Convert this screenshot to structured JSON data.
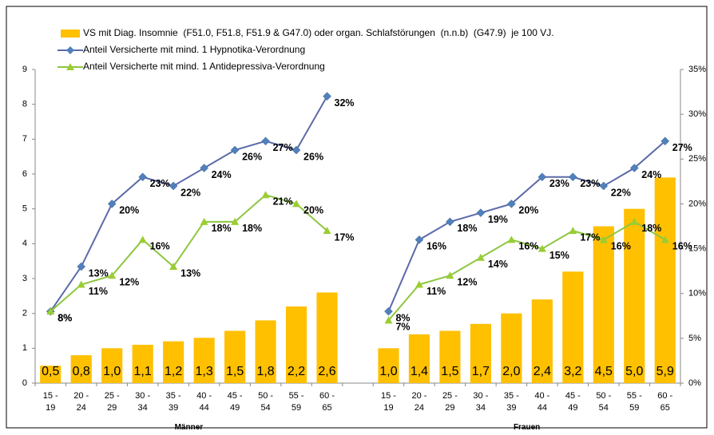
{
  "chart_data": {
    "type": "bar_line",
    "categories": [
      "15 - 19",
      "20 - 24",
      "25 - 29",
      "30 - 34",
      "35 - 39",
      "40 - 44",
      "45 - 49",
      "50 - 54",
      "55 - 59",
      "60 - 65",
      null,
      "15 - 19",
      "20 - 24",
      "25 - 29",
      "30 - 34",
      "35 - 39",
      "40 - 44",
      "45 - 49",
      "50 - 54",
      "55 - 59",
      "60 - 65"
    ],
    "group_labels": [
      "Männer",
      "Frauen"
    ],
    "series": [
      {
        "name": "VS mit Diag. Insomnie  (F51.0, F51.8, F51.9 & G47.0) oder organ. Schlafstörungen  (n.n.b)  (G47.9)  je 100 VJ.",
        "type": "bar",
        "color": "#ffc000",
        "values": [
          0.5,
          0.8,
          1.0,
          1.1,
          1.2,
          1.3,
          1.5,
          1.8,
          2.2,
          2.6,
          null,
          1.0,
          1.4,
          1.5,
          1.7,
          2.0,
          2.4,
          3.2,
          4.5,
          5.0,
          5.9
        ],
        "value_labels": [
          "0,5",
          "0,8",
          "1,0",
          "1,1",
          "1,2",
          "1,3",
          "1,5",
          "1,8",
          "2,2",
          "2,6",
          null,
          "1,0",
          "1,4",
          "1,5",
          "1,7",
          "2,0",
          "2,4",
          "3,2",
          "4,5",
          "5,0",
          "5,9"
        ]
      },
      {
        "name": "Anteil Versicherte mit mind. 1 Hypnotika-Verordnung",
        "type": "line",
        "marker": "diamond",
        "color": "#5b6aa8",
        "marker_color": "#4f81bd",
        "axis": "y2",
        "values": [
          8,
          13,
          20,
          23,
          22,
          24,
          26,
          27,
          26,
          32,
          null,
          8,
          16,
          18,
          19,
          20,
          23,
          23,
          22,
          24,
          27
        ],
        "value_labels": [
          "8%",
          "13%",
          "20%",
          "23%",
          "22%",
          "24%",
          "26%",
          "27%",
          "26%",
          "32%",
          null,
          "8%",
          "16%",
          "18%",
          "19%",
          "20%",
          "23%",
          "23%",
          "22%",
          "24%",
          "27%"
        ]
      },
      {
        "name": "Anteil Versicherte mit mind. 1 Antidepressiva-Verordnung",
        "type": "line",
        "marker": "triangle",
        "color": "#8dc63f",
        "marker_color": "#9acd32",
        "axis": "y2",
        "values": [
          8,
          11,
          12,
          16,
          13,
          18,
          18,
          21,
          20,
          17,
          null,
          7,
          11,
          12,
          14,
          16,
          15,
          17,
          16,
          18,
          16
        ],
        "value_labels": [
          "8%",
          "11%",
          "12%",
          "16%",
          "13%",
          "18%",
          "18%",
          "21%",
          "20%",
          "17%",
          null,
          "7%",
          "11%",
          "12%",
          "14%",
          "16%",
          "15%",
          "17%",
          "16%",
          "18%",
          "16%"
        ]
      }
    ],
    "ylim": [
      0,
      9
    ],
    "yticks": [
      0,
      1,
      2,
      3,
      4,
      5,
      6,
      7,
      8,
      9
    ],
    "y2lim": [
      0,
      35
    ],
    "y2ticks": [
      {
        "value": 0,
        "label": "0%"
      },
      {
        "value": 5,
        "label": "5%"
      },
      {
        "value": 10,
        "label": "10%"
      },
      {
        "value": 15,
        "label": "15%"
      },
      {
        "value": 20,
        "label": "20%"
      },
      {
        "value": 25,
        "label": "25%"
      },
      {
        "value": 30,
        "label": "30%"
      },
      {
        "value": 35,
        "label": "35%"
      }
    ]
  }
}
